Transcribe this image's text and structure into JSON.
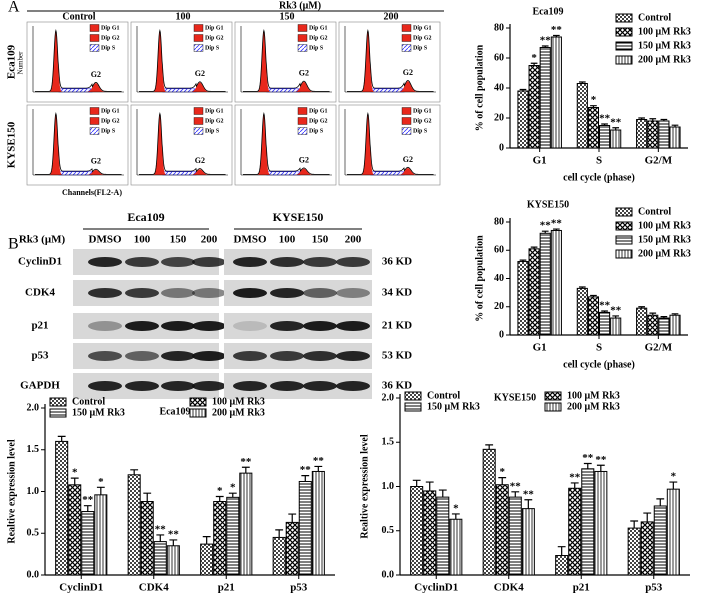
{
  "panel_a": {
    "label": "A",
    "treatment": "Rk3 (μM)",
    "columns": [
      "Control",
      "100",
      "150",
      "200"
    ],
    "rows": [
      "Eca109",
      "KYSE150"
    ],
    "legend": [
      "Dip G1",
      "Dip G2",
      "Dip S"
    ],
    "peak_label": "G2",
    "y_label": "Number",
    "x_label": "Channels(FL2-A)"
  },
  "panel_b": {
    "label": "B",
    "cell_lines": [
      "Eca109",
      "KYSE150"
    ],
    "treatment": "Rk3 (μM)",
    "lanes": [
      "DMSO",
      "100",
      "150",
      "200"
    ],
    "proteins": [
      "CyclinD1",
      "CDK4",
      "p21",
      "p53",
      "GAPDH"
    ],
    "sizes": [
      "36 KD",
      "34 KD",
      "21 KD",
      "53 KD",
      "36 KD"
    ]
  },
  "chart_data": [
    {
      "type": "bar",
      "title": "Eca109",
      "y_label": "% of cell population",
      "x_label": "cell cycle (phase)",
      "categories": [
        "G1",
        "S",
        "G2/M"
      ],
      "ylim": [
        0,
        80
      ],
      "yticks": [
        0,
        20,
        40,
        60,
        80
      ],
      "series": [
        {
          "name": "Control",
          "color": "#000000",
          "values": [
            38,
            43,
            19
          ],
          "errors": [
            1,
            1,
            1
          ],
          "significance": [
            null,
            null,
            null
          ]
        },
        {
          "name": "100 μM Rk3",
          "color": "#000000",
          "values": [
            55,
            27,
            18
          ],
          "errors": [
            1.5,
            1.2,
            1.5
          ],
          "significance": [
            "*",
            "*",
            null
          ]
        },
        {
          "name": "150 μM Rk3",
          "color": "#000000",
          "values": [
            67,
            15,
            18
          ],
          "errors": [
            1,
            1,
            1
          ],
          "significance": [
            "**",
            "**",
            null
          ]
        },
        {
          "name": "200 μM Rk3",
          "color": "#000000",
          "values": [
            74,
            12,
            14
          ],
          "errors": [
            1,
            1.5,
            1.2
          ],
          "significance": [
            "**",
            "**",
            null
          ]
        }
      ]
    },
    {
      "type": "bar",
      "title": "KYSE150",
      "y_label": "% of cell population",
      "x_label": "cell cycle (phase)",
      "categories": [
        "G1",
        "S",
        "G2/M"
      ],
      "ylim": [
        0,
        80
      ],
      "yticks": [
        0,
        20,
        40,
        60,
        80
      ],
      "series": [
        {
          "name": "Control",
          "color": "#000000",
          "values": [
            52,
            33,
            19
          ],
          "errors": [
            1,
            1,
            1
          ],
          "significance": [
            null,
            null,
            null
          ]
        },
        {
          "name": "100 μM Rk3",
          "color": "#000000",
          "values": [
            61,
            27,
            14
          ],
          "errors": [
            1.2,
            1,
            1.5
          ],
          "significance": [
            null,
            null,
            null
          ]
        },
        {
          "name": "150 μM Rk3",
          "color": "#000000",
          "values": [
            72,
            16,
            12
          ],
          "errors": [
            1.5,
            1,
            1
          ],
          "significance": [
            "**",
            "**",
            null
          ]
        },
        {
          "name": "200 μM Rk3",
          "color": "#000000",
          "values": [
            74,
            12,
            14
          ],
          "errors": [
            1,
            1.5,
            1
          ],
          "significance": [
            "**",
            "**",
            null
          ]
        }
      ]
    },
    {
      "type": "bar",
      "title": "Eca109",
      "y_label": "Realtive expression level",
      "categories": [
        "CyclinD1",
        "CDK4",
        "p21",
        "p53"
      ],
      "ylim": [
        0,
        2
      ],
      "yticks": [
        {
          "value": 0,
          "label": "0.0"
        },
        0.5,
        {
          "value": 1,
          "label": "1.0"
        },
        1.5,
        {
          "value": 2,
          "label": "2.0"
        }
      ],
      "series": [
        {
          "name": "Control",
          "color": "#000000",
          "values": [
            1.6,
            1.2,
            0.37,
            0.45
          ],
          "errors": [
            0.06,
            0.06,
            0.09,
            0.09
          ],
          "significance": [
            null,
            null,
            null,
            null
          ]
        },
        {
          "name": "100 μM Rk3",
          "color": "#000000",
          "values": [
            1.08,
            0.88,
            0.88,
            0.63
          ],
          "errors": [
            0.08,
            0.1,
            0.06,
            0.1
          ],
          "significance": [
            "*",
            null,
            "*",
            null
          ]
        },
        {
          "name": "150 μM Rk3",
          "color": "#000000",
          "values": [
            0.76,
            0.4,
            0.93,
            1.12
          ],
          "errors": [
            0.07,
            0.08,
            0.05,
            0.07
          ],
          "significance": [
            "**",
            "**",
            "*",
            "**"
          ]
        },
        {
          "name": "200 μM Rk3",
          "color": "#000000",
          "values": [
            0.96,
            0.35,
            1.22,
            1.24
          ],
          "errors": [
            0.09,
            0.07,
            0.07,
            0.06
          ],
          "significance": [
            "*",
            "**",
            "**",
            "**"
          ]
        }
      ]
    },
    {
      "type": "bar",
      "title": "KYSE150",
      "y_label": "Realtive expression level",
      "categories": [
        "CyclinD1",
        "CDK4",
        "p21",
        "p53"
      ],
      "ylim": [
        0,
        2
      ],
      "yticks": [
        {
          "value": 0,
          "label": "0.0"
        },
        0.5,
        {
          "value": 1,
          "label": "1.0"
        },
        1.5,
        {
          "value": 2,
          "label": "2.0"
        }
      ],
      "series": [
        {
          "name": "Control",
          "color": "#000000",
          "values": [
            1.0,
            1.42,
            0.22,
            0.53
          ],
          "errors": [
            0.07,
            0.05,
            0.1,
            0.08
          ],
          "significance": [
            null,
            null,
            null,
            null
          ]
        },
        {
          "name": "100 μM Rk3",
          "color": "#000000",
          "values": [
            0.95,
            1.02,
            0.98,
            0.6
          ],
          "errors": [
            0.1,
            0.08,
            0.06,
            0.1
          ],
          "significance": [
            null,
            "*",
            "**",
            null
          ]
        },
        {
          "name": "150 μM Rk3",
          "color": "#000000",
          "values": [
            0.88,
            0.88,
            1.2,
            0.78
          ],
          "errors": [
            0.08,
            0.06,
            0.06,
            0.08
          ],
          "significance": [
            null,
            "**",
            "**",
            null
          ]
        },
        {
          "name": "200 μM Rk3",
          "color": "#000000",
          "values": [
            0.63,
            0.75,
            1.17,
            0.97
          ],
          "errors": [
            0.06,
            0.1,
            0.07,
            0.08
          ],
          "significance": [
            "*",
            "**",
            "**",
            "*"
          ]
        }
      ]
    }
  ]
}
